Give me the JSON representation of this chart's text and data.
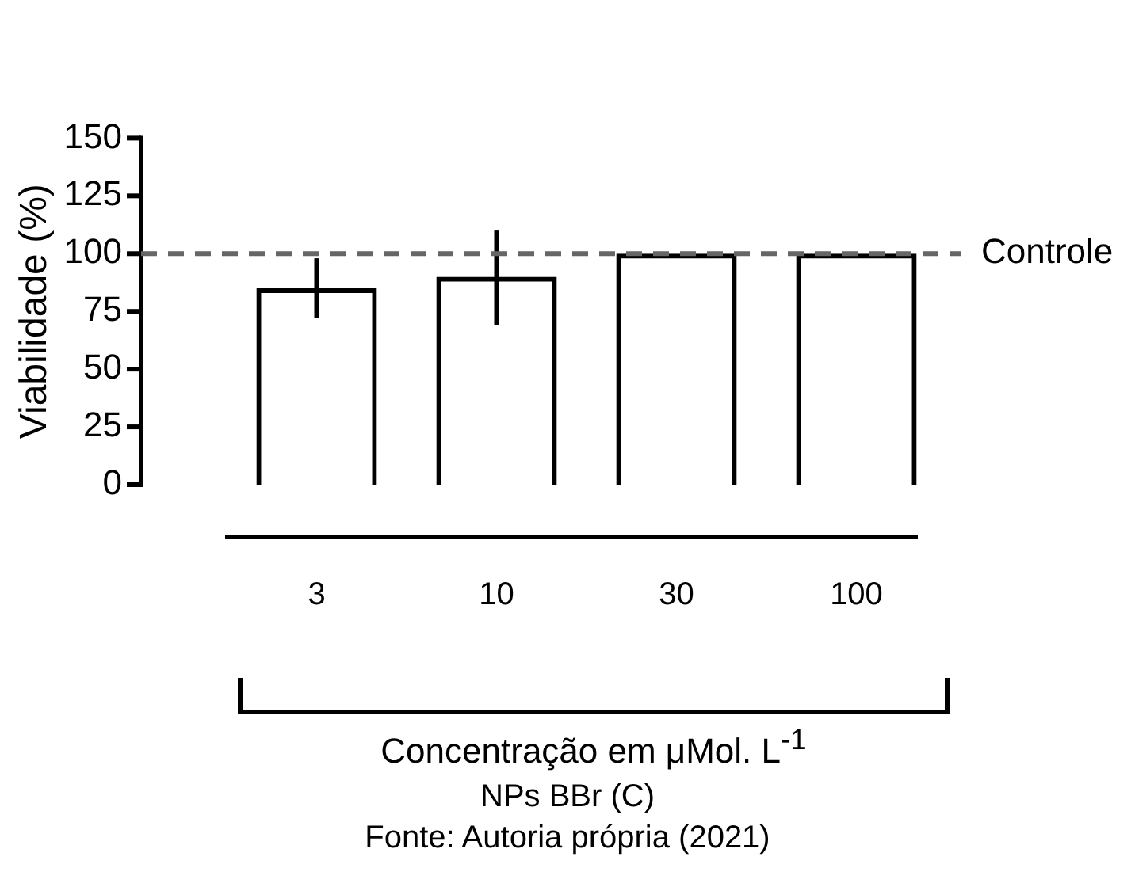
{
  "chart_data": {
    "type": "bar",
    "ylabel": "Viabilidade (%)",
    "xlabel": "Concentração em μMol. L$^{-1}$",
    "categories": [
      "3",
      "10",
      "30",
      "100"
    ],
    "values": [
      85,
      90,
      100,
      100
    ],
    "errors": [
      13,
      [
        69,
        110
      ],
      null,
      null
    ],
    "color": "#000000",
    "ylim": [
      0,
      150
    ],
    "yticks": [
      0,
      25,
      50,
      75,
      100,
      125,
      150
    ],
    "grid": false,
    "legend": false,
    "ref_lines": [
      {
        "axis": "y",
        "value": 100,
        "label": "Controle",
        "color": "#666666",
        "line_style": "dashed"
      }
    ],
    "annotations": [
      "NPs BBr (C)",
      "Fonte: Autoria própria (2021)"
    ]
  }
}
